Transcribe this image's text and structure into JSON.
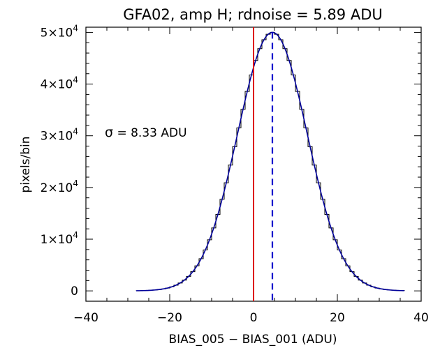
{
  "chart_data": {
    "type": "histogram",
    "title": "GFA02, amp H; rdnoise = 5.89 ADU",
    "xlabel": "BIAS_005 − BIAS_001 (ADU)",
    "ylabel": "pixels/bin",
    "xlim": [
      -40,
      40
    ],
    "ylim": [
      -2000,
      51000
    ],
    "x_ticks": [
      -40,
      -20,
      0,
      20,
      40
    ],
    "x_tick_labels": [
      "−40",
      "−20",
      "0",
      "20",
      "40"
    ],
    "y_ticks": [
      0,
      10000,
      20000,
      30000,
      40000,
      50000
    ],
    "y_tick_labels": [
      {
        "mantissa": "0",
        "exp": ""
      },
      {
        "mantissa": "1×10",
        "exp": "4"
      },
      {
        "mantissa": "2×10",
        "exp": "4"
      },
      {
        "mantissa": "3×10",
        "exp": "4"
      },
      {
        "mantissa": "4×10",
        "exp": "4"
      },
      {
        "mantissa": "5×10",
        "exp": "4"
      }
    ],
    "annotation": {
      "symbol": "σ",
      "text": " = 8.33 ADU"
    },
    "histogram": {
      "bin_width": 1,
      "x_start": -28,
      "x_end": 36,
      "mean": 4.5,
      "sigma": 8.33,
      "peak": 50000
    },
    "gaussian_fit": {
      "mean": 4.5,
      "sigma": 8.33,
      "peak": 50000,
      "x_range": [
        -28,
        36
      ]
    },
    "vlines": [
      {
        "x": 0,
        "style": "solid",
        "color": "#dd0000"
      },
      {
        "x": 4.5,
        "style": "dashed",
        "color": "#0000cc"
      }
    ],
    "grid": false,
    "colors": {
      "histogram": "#000000",
      "fit": "#000099",
      "frame": "#000000"
    }
  }
}
